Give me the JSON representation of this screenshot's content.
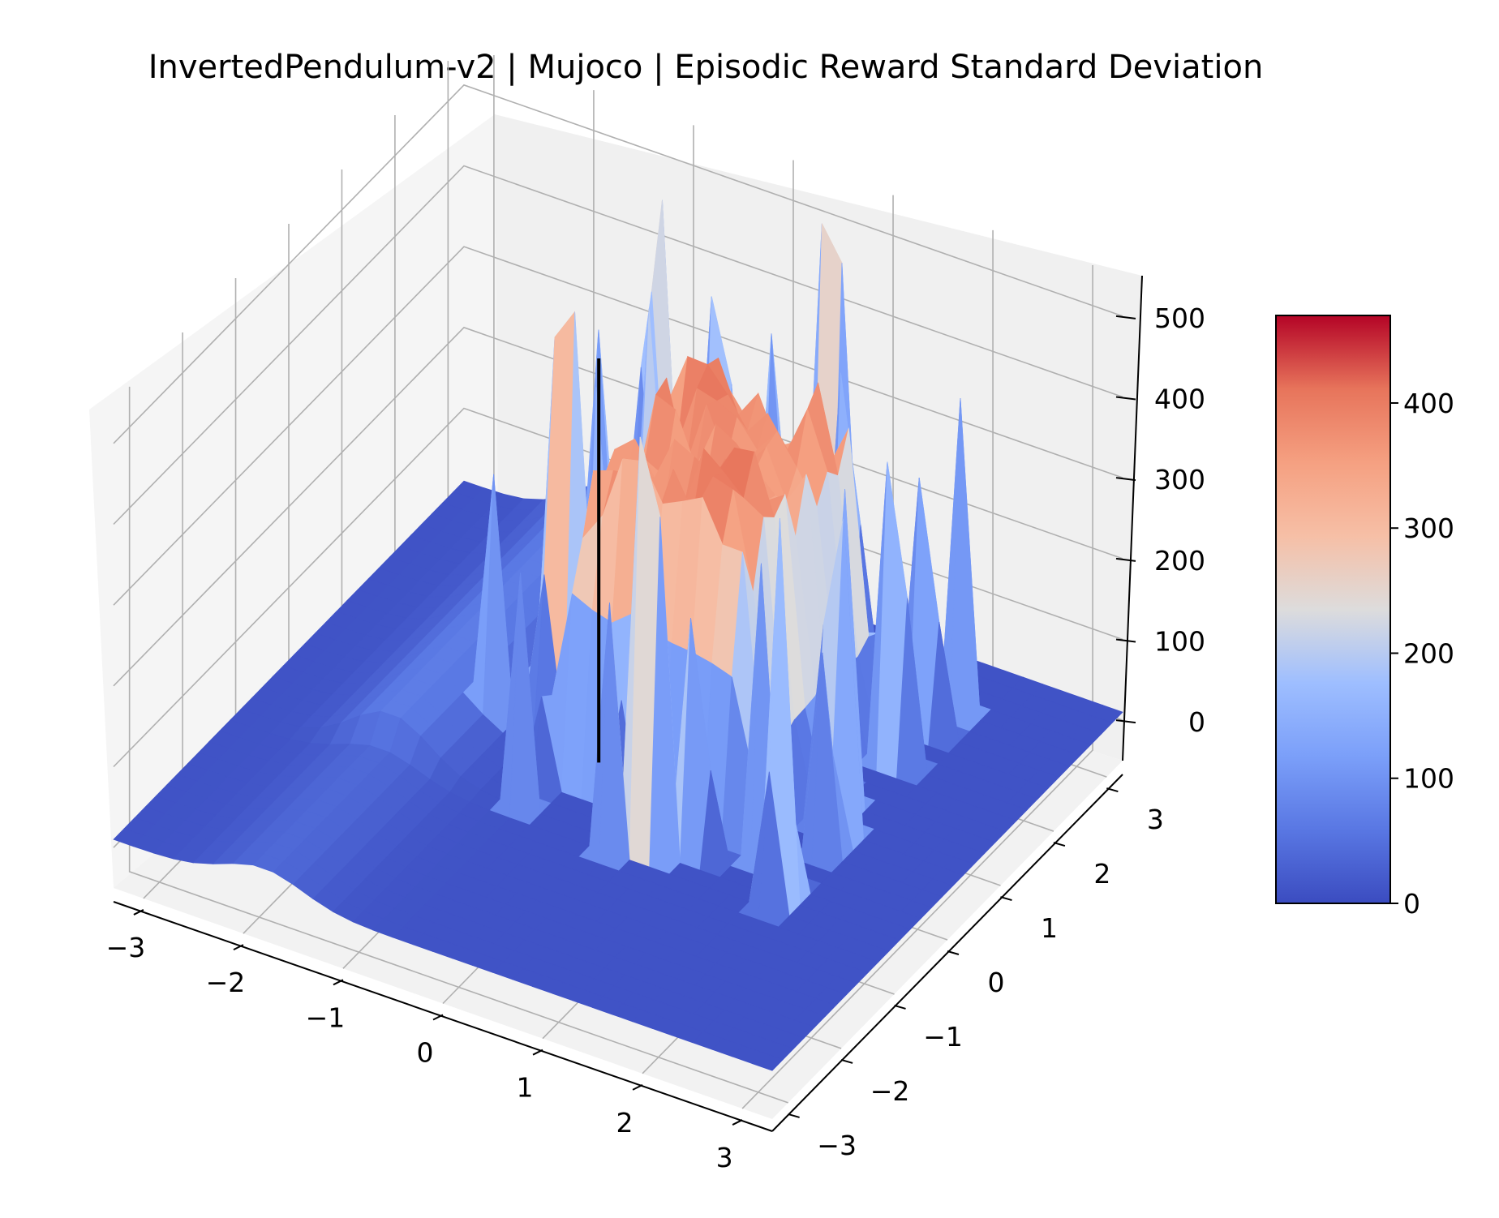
{
  "chart_data": {
    "type": "surface",
    "title": "InvertedPendulum-v2 | Mujoco | Episodic Reward Standard Deviation",
    "xlabel": "",
    "ylabel": "",
    "zlabel": "",
    "x_ticks": [
      "−3",
      "−2",
      "−1",
      "0",
      "1",
      "2",
      "3"
    ],
    "y_ticks": [
      "−3",
      "−2",
      "−1",
      "0",
      "1",
      "2",
      "3"
    ],
    "z_ticks": [
      "0",
      "100",
      "200",
      "300",
      "400",
      "500"
    ],
    "xlim": [
      -3.3,
      3.3
    ],
    "ylim": [
      -3.3,
      3.3
    ],
    "zlim": [
      -50,
      550
    ],
    "colormap": "coolwarm",
    "colorbar": {
      "range": [
        0,
        470
      ],
      "ticks": [
        "0",
        "100",
        "200",
        "300",
        "400"
      ],
      "placement": "right"
    },
    "grid": true,
    "marker_line": {
      "x": -0.3,
      "y": 0.2,
      "z_from": 0,
      "z_to": 500,
      "color": "#000000"
    },
    "surface_shape": {
      "baseline": 10,
      "plateau_value": 430,
      "plateau_x_range": [
        -0.6,
        1.6
      ],
      "plateau_y_range": [
        -0.5,
        2.2
      ],
      "ridge_x": -1.8,
      "ridge_value": 60,
      "spike_values": [
        520,
        480,
        430,
        400,
        380,
        320,
        300,
        260,
        220,
        200,
        180,
        150,
        120
      ]
    }
  }
}
